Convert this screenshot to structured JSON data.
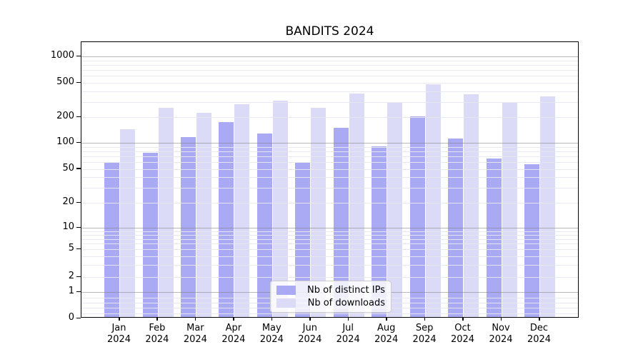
{
  "chart_data": {
    "type": "bar",
    "title": "BANDITS 2024",
    "xlabel": "",
    "ylabel": "",
    "yscale": "symlog",
    "ylim": [
      0,
      1450
    ],
    "yticks": [
      0,
      1,
      2,
      5,
      10,
      20,
      50,
      100,
      200,
      500,
      1000
    ],
    "grid": true,
    "legend_position": "lower center",
    "categories": [
      "Jan",
      "Feb",
      "Mar",
      "Apr",
      "May",
      "Jun",
      "Jul",
      "Aug",
      "Sep",
      "Oct",
      "Nov",
      "Dec"
    ],
    "year_label": "2024",
    "series": [
      {
        "name": "Nb of distinct IPs",
        "color": "#a9a9f4",
        "values": [
          57,
          74,
          112,
          170,
          125,
          57,
          145,
          88,
          198,
          108,
          64,
          55
        ]
      },
      {
        "name": "Nb of downloads",
        "color": "#dbdbf8",
        "values": [
          139,
          248,
          215,
          274,
          298,
          247,
          360,
          280,
          460,
          357,
          283,
          338
        ]
      }
    ]
  }
}
